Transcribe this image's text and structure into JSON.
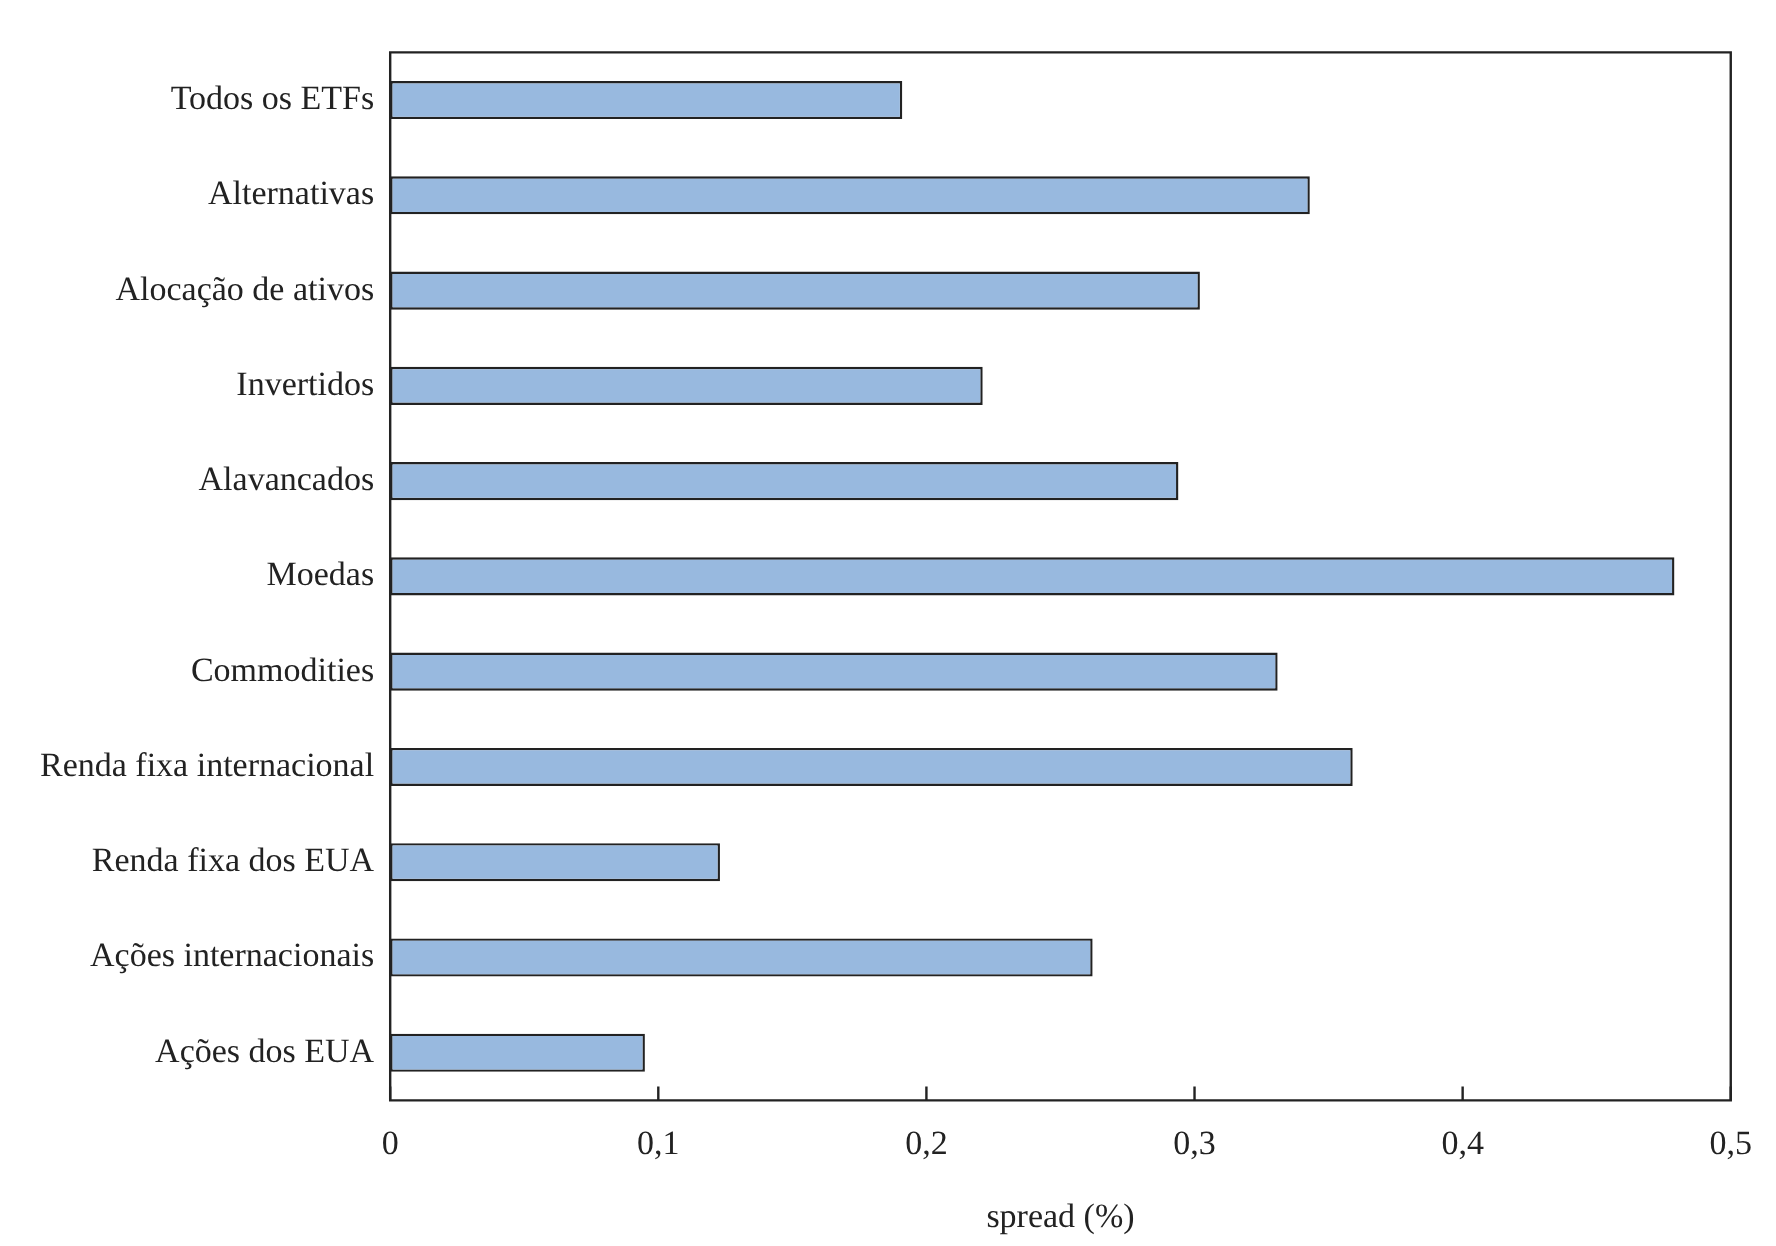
{
  "chart_data": {
    "type": "bar",
    "orientation": "horizontal",
    "xlabel": "spread (%)",
    "categories": [
      "Todos os ETFs",
      "Alternativas",
      "Alocação de ativos",
      "Invertidos",
      "Alavancados",
      "Moedas",
      "Commodities",
      "Renda fixa internacional",
      "Renda fixa dos EUA",
      "Ações internacionais",
      "Ações dos EUA"
    ],
    "values": [
      0.191,
      0.343,
      0.302,
      0.221,
      0.294,
      0.479,
      0.331,
      0.359,
      0.123,
      0.262,
      0.095
    ],
    "color": "#98b9df",
    "xlim": [
      0,
      0.5
    ],
    "xticks": [
      0,
      {
        "value": 0.1,
        "label": "0,1"
      },
      {
        "value": 0.2,
        "label": "0,2"
      },
      {
        "value": 0.3,
        "label": "0,3"
      },
      {
        "value": 0.4,
        "label": "0,4"
      },
      {
        "value": 0.5,
        "label": "0,5"
      }
    ],
    "grid": false,
    "legend": false
  }
}
